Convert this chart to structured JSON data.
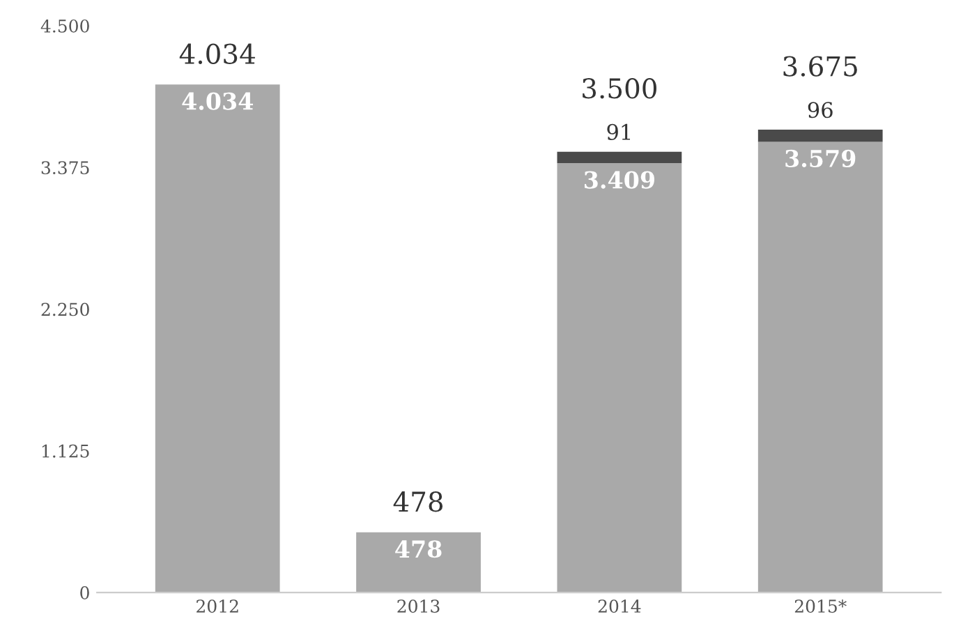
{
  "chart_data": {
    "type": "bar",
    "stacked": true,
    "categories": [
      "2012",
      "2013",
      "2014",
      "2015*"
    ],
    "series": [
      {
        "color": "#a9a9a9",
        "values": [
          4034,
          478,
          3409,
          3579
        ],
        "value_labels": [
          "4.034",
          "478",
          "3.409",
          "3.579"
        ]
      },
      {
        "color": "#4a4a4a",
        "values": [
          null,
          null,
          91,
          96
        ],
        "value_labels": [
          null,
          null,
          "91",
          "96"
        ]
      }
    ],
    "totals": [
      "4.034",
      "478",
      "3.500",
      "3.675"
    ],
    "ylim": [
      0,
      4500
    ],
    "yticks": [
      {
        "value": 0,
        "label": "0"
      },
      {
        "value": 1125,
        "label": "1.125"
      },
      {
        "value": 2250,
        "label": "2.250"
      },
      {
        "value": 3375,
        "label": "3.375"
      },
      {
        "value": 4500,
        "label": "4.500"
      }
    ]
  }
}
